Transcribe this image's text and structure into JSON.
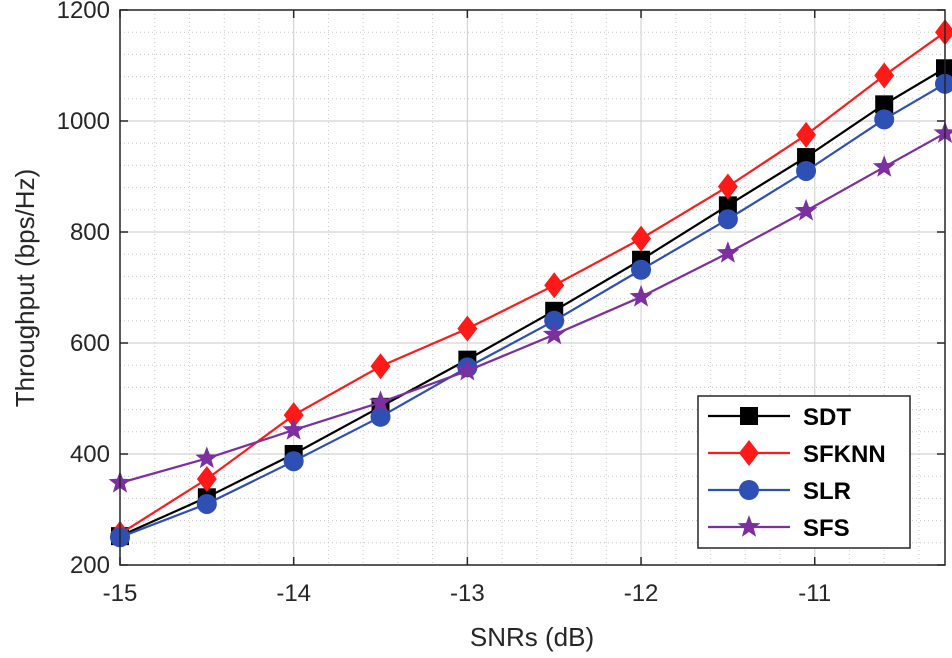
{
  "chart_data": {
    "type": "line",
    "title": "",
    "xlabel": "SNRs (dB)",
    "ylabel": "Throughput (bps/Hz)",
    "xlim": [
      -15,
      -10.25
    ],
    "ylim": [
      200,
      1200
    ],
    "xticks": [
      -15,
      -14,
      -13,
      -12,
      -11
    ],
    "xtick_labels": [
      "-15",
      "-14",
      "-13",
      "-12",
      "-11"
    ],
    "yticks": [
      200,
      400,
      600,
      800,
      1000,
      1200
    ],
    "ytick_labels": [
      "200",
      "400",
      "600",
      "800",
      "1000",
      "1200"
    ],
    "grid": true,
    "minor_grid": true,
    "legend_position": "bottom-right",
    "x": [
      -15,
      -14.5,
      -14,
      -13.5,
      -13,
      -12.5,
      -12,
      -11.5,
      -11.05,
      -10.6,
      -10.25
    ],
    "series": [
      {
        "name": "SDT",
        "color": "#000000",
        "marker": "square",
        "values": [
          252,
          322,
          400,
          485,
          570,
          658,
          750,
          848,
          935,
          1030,
          1095
        ]
      },
      {
        "name": "SFKNN",
        "color": "#ff1a1a",
        "marker": "diamond",
        "values": [
          256,
          355,
          470,
          558,
          626,
          704,
          788,
          882,
          975,
          1082,
          1160
        ]
      },
      {
        "name": "SLR",
        "color": "#2e4fb3",
        "marker": "circle",
        "values": [
          250,
          310,
          387,
          467,
          556,
          640,
          732,
          823,
          910,
          1003,
          1067
        ]
      },
      {
        "name": "SFS",
        "color": "#7b2fa0",
        "marker": "star",
        "values": [
          348,
          392,
          443,
          493,
          550,
          615,
          683,
          762,
          838,
          917,
          978
        ]
      }
    ]
  }
}
